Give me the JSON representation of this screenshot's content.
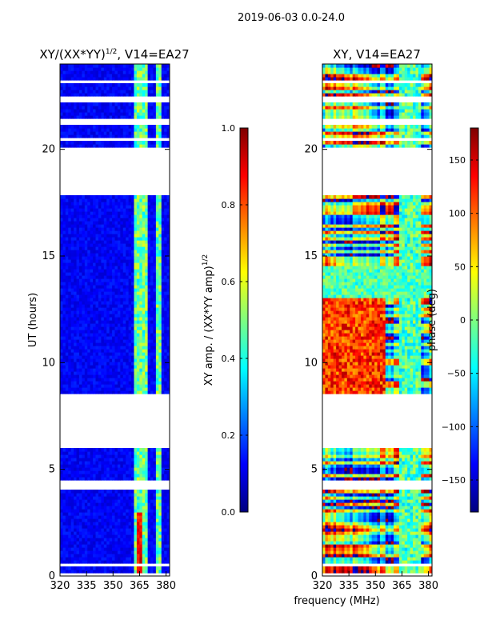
{
  "figure": {
    "suptitle": "2019-06-03 0.0-24.0",
    "shared_xlabel": "frequency (MHz)"
  },
  "colors": {
    "jet": [
      "#00007f",
      "#0000ff",
      "#007fff",
      "#00ffff",
      "#7fff7f",
      "#ffff00",
      "#ff7f00",
      "#ff0000",
      "#7f0000"
    ],
    "background": "#ffffff",
    "axis": "#000000"
  },
  "chart_data": [
    {
      "type": "heatmap",
      "title": "XY/(XX*YY)^1/2, V14=EA27",
      "title_main": "XY/(XX*YY)",
      "title_sup": "1/2",
      "title_tail": ", V14=EA27",
      "xlabel": "",
      "ylabel": "UT (hours)",
      "xlim": [
        320,
        382
      ],
      "ylim": [
        0,
        24
      ],
      "xticks": [
        320,
        335,
        350,
        365,
        380
      ],
      "yticks": [
        0,
        5,
        10,
        15,
        20
      ],
      "colorbar": {
        "label": "XY amp. / (XX*YY amp)^1/2",
        "label_main": "XY amp. / (XX*YY amp)",
        "label_sup": "1/2",
        "range": [
          0.0,
          1.0
        ],
        "ticks": [
          0.0,
          0.2,
          0.4,
          0.6,
          0.8,
          1.0
        ],
        "tick_labels": [
          "0.0",
          "0.2",
          "0.4",
          "0.6",
          "0.8",
          "1.0"
        ]
      },
      "data_gaps_hours": [
        [
          17.8,
          20.1
        ],
        [
          8.4,
          8.6
        ],
        [
          6.0,
          8.4
        ],
        [
          4.1,
          4.5
        ],
        [
          20.4,
          20.6
        ],
        [
          21.1,
          21.5
        ],
        [
          22.2,
          22.5
        ],
        [
          23.1,
          23.3
        ],
        [
          0.0,
          0.1
        ],
        [
          0.4,
          0.6
        ]
      ],
      "strong_bands_mhz": [
        [
          362,
          366
        ],
        [
          367,
          370
        ],
        [
          374,
          377
        ]
      ],
      "baseline_value": 0.12
    },
    {
      "type": "heatmap",
      "title": "XY, V14=EA27",
      "xlabel": "",
      "ylabel": "",
      "xlim": [
        320,
        382
      ],
      "ylim": [
        0,
        24
      ],
      "xticks": [
        320,
        335,
        350,
        365,
        380
      ],
      "yticks": [
        0,
        5,
        10,
        15,
        20
      ],
      "colorbar": {
        "label": "phase (deg)",
        "range": [
          -180,
          180
        ],
        "ticks": [
          -150,
          -100,
          -50,
          0,
          50,
          100,
          150
        ],
        "tick_labels": [
          "−150",
          "−100",
          "−50",
          "0",
          "50",
          "100",
          "150"
        ]
      },
      "data_gaps_hours": [
        [
          17.8,
          20.1
        ],
        [
          8.4,
          8.6
        ],
        [
          6.0,
          8.4
        ],
        [
          4.1,
          4.5
        ],
        [
          20.4,
          20.6
        ],
        [
          21.1,
          21.5
        ],
        [
          22.2,
          22.5
        ],
        [
          23.1,
          23.3
        ],
        [
          0.0,
          0.1
        ],
        [
          0.4,
          0.6
        ]
      ]
    }
  ]
}
